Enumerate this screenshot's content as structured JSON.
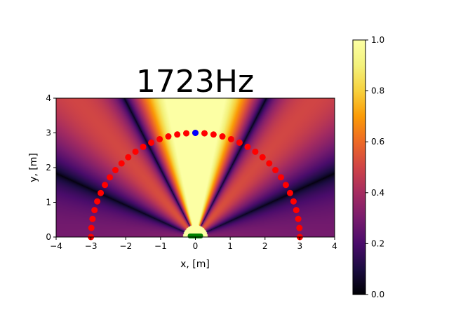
{
  "chart_data": {
    "type": "heatmap",
    "title": "1723Hz",
    "xlabel": "x, [m]",
    "ylabel": "y, [m]",
    "xlim": [
      -4,
      4
    ],
    "ylim": [
      0,
      4
    ],
    "x_ticks": [
      "−4",
      "−3",
      "−2",
      "−1",
      "0",
      "1",
      "2",
      "3",
      "4"
    ],
    "y_ticks": [
      "0",
      "1",
      "2",
      "3",
      "4"
    ],
    "colormap": "inferno",
    "colorbar": {
      "range": [
        0.0,
        1.0
      ],
      "ticks": [
        "0.0",
        "0.2",
        "0.4",
        "0.6",
        "0.8",
        "1.0"
      ]
    },
    "frequency_hz": 1723,
    "measurement_arc": {
      "center": [
        0,
        0
      ],
      "radius": 3,
      "point_count": 37,
      "color": "#ff0000"
    },
    "reference_point": {
      "x": 0,
      "y": 3,
      "color": "#0000ff"
    },
    "source": {
      "x_range": [
        -0.22,
        0.22
      ],
      "y": 0.02,
      "color": "#008000"
    },
    "grid": false
  }
}
